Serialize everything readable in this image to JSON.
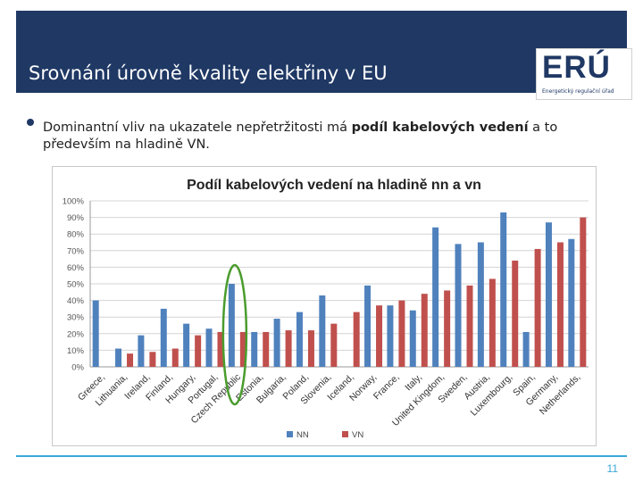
{
  "slide": {
    "title": "Srovnání úrovně kvality elektřiny v EU",
    "bullet_pre": "Dominantní vliv na ukazatele nepřetržitosti má ",
    "bullet_bold": "podíl kabelových vedení",
    "bullet_post": " a to především na hladině VN.",
    "page_number": "11",
    "logo_text": "ERÚ",
    "logo_subtitle": "Energetický regulační úřad"
  },
  "colors": {
    "nn": "#4f81bd",
    "vn": "#c0504d",
    "header": "#1f3864",
    "highlight": "#4a9c2d"
  },
  "chart_data": {
    "type": "bar",
    "title": "Podíl kabelových vedení na hladině nn a vn",
    "categories": [
      "Greece,",
      "Lithuania,",
      "Ireland,",
      "Finland,",
      "Hungary,",
      "Portugal,",
      "Czech Republic",
      "Estonia,",
      "Bulgaria,",
      "Poland,",
      "Slovenia,",
      "Iceland,",
      "Norway,",
      "France,",
      "Italy,",
      "United Kingdom,",
      "Sweden,",
      "Austria,",
      "Luxembourg,",
      "Spain,",
      "Germany,",
      "Netherlands,"
    ],
    "series": [
      {
        "name": "NN",
        "values": [
          40,
          11,
          19,
          35,
          26,
          23,
          50,
          21,
          29,
          33,
          43,
          null,
          49,
          37,
          34,
          84,
          74,
          75,
          93,
          21,
          87,
          77
        ]
      },
      {
        "name": "VN",
        "values": [
          null,
          8,
          9,
          11,
          19,
          21,
          21,
          21,
          22,
          22,
          26,
          33,
          37,
          40,
          44,
          46,
          49,
          53,
          64,
          71,
          75,
          90
        ]
      }
    ],
    "ylim": [
      0,
      100
    ],
    "yticks": [
      "0%",
      "10%",
      "20%",
      "30%",
      "40%",
      "50%",
      "60%",
      "70%",
      "80%",
      "90%",
      "100%"
    ],
    "legend": [
      "NN",
      "VN"
    ],
    "legend_position": "bottom",
    "highlight_category": "Czech Republic"
  }
}
